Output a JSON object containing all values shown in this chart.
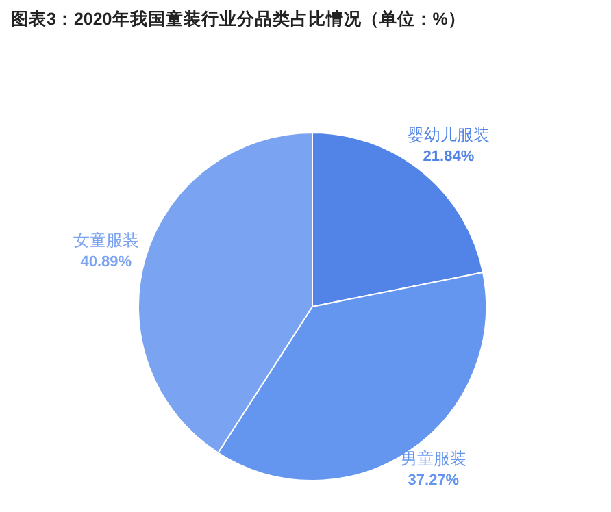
{
  "chart_data": {
    "type": "pie",
    "title": "图表3：2020年我国童装行业分品类占比情况（单位：%）",
    "categories": [
      "婴幼儿服装",
      "男童服装",
      "女童服装"
    ],
    "values": [
      21.84,
      37.27,
      40.89
    ],
    "value_labels": [
      "21.84%",
      "37.27%",
      "40.89%"
    ],
    "colors": [
      "#5283e6",
      "#6596ef",
      "#7aa3f1"
    ]
  }
}
